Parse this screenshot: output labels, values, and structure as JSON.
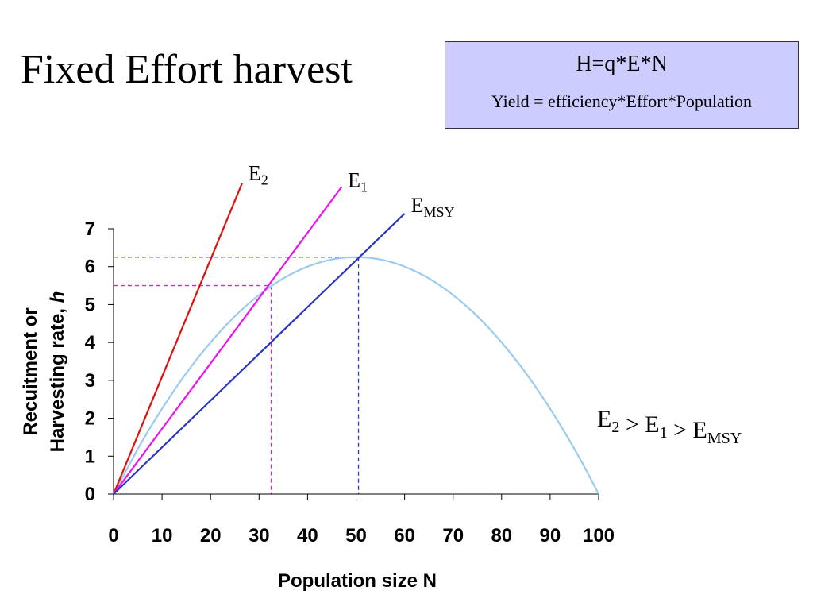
{
  "title": "Fixed Effort harvest",
  "formula": {
    "main": "H=q*E*N",
    "sub": "Yield = efficiency*Effort*Population"
  },
  "colors": {
    "recruitment_curve": "#99ccf0",
    "E2": "#e01010",
    "E1": "#ee10ee",
    "EMSY": "#2a35c0",
    "formula_box": "#ccccff"
  },
  "chart_data": {
    "type": "line",
    "xlabel": "Population size N",
    "ylabel_line1": "Recuitment or",
    "ylabel_line2": "Harvesting rate, ",
    "ylabel_italic": "h",
    "xlim": [
      0,
      100
    ],
    "ylim": [
      0,
      7
    ],
    "x_ticks": [
      "0",
      "10",
      "20",
      "30",
      "40",
      "50",
      "60",
      "70",
      "80",
      "90",
      "100"
    ],
    "y_ticks": [
      "0",
      "1",
      "2",
      "3",
      "4",
      "5",
      "6",
      "7"
    ],
    "series": [
      {
        "key": "recruitment",
        "x": [
          0,
          5,
          10,
          15,
          20,
          25,
          30,
          35,
          40,
          45,
          50,
          55,
          60,
          65,
          70,
          75,
          80,
          85,
          90,
          95,
          100
        ],
        "y": [
          0,
          1.19,
          2.25,
          3.19,
          4.0,
          4.69,
          5.25,
          5.69,
          6.0,
          6.19,
          6.25,
          6.19,
          6.0,
          5.69,
          5.25,
          4.69,
          4.0,
          3.19,
          2.25,
          1.19,
          0
        ]
      },
      {
        "key": "E2",
        "label_main": "E",
        "label_sub": "2",
        "x": [
          0,
          26.5
        ],
        "y": [
          0,
          8.2
        ]
      },
      {
        "key": "E1",
        "label_main": "E",
        "label_sub": "1",
        "x": [
          0,
          47
        ],
        "y": [
          0,
          8.1
        ]
      },
      {
        "key": "EMSY",
        "label_main": "E",
        "label_sub": "MSY",
        "x": [
          0,
          60
        ],
        "y": [
          0,
          7.4
        ]
      }
    ],
    "guides": [
      {
        "key": "E1",
        "x": 32.5,
        "y": 5.5
      },
      {
        "key": "EMSY",
        "x": 50.5,
        "y": 6.25
      }
    ],
    "annotation": {
      "parts": [
        {
          "main": "E",
          "sub": "2"
        },
        {
          "main": " > E",
          "sub": "1"
        },
        {
          "main": " > E",
          "sub": "MSY"
        }
      ]
    }
  }
}
